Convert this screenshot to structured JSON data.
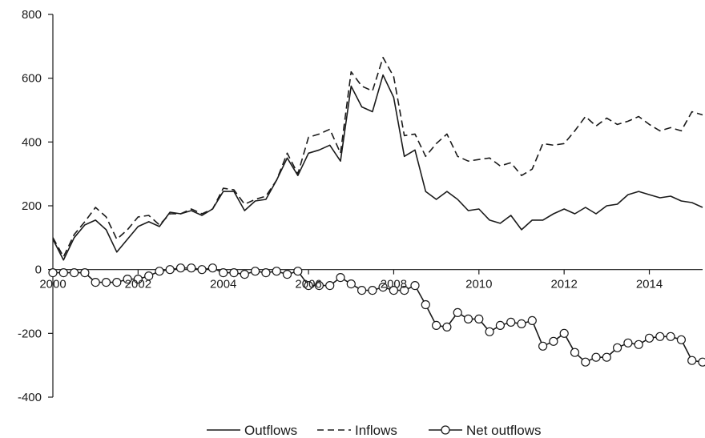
{
  "chart_data": {
    "type": "line",
    "title": "",
    "xlabel": "",
    "ylabel": "",
    "xlim": [
      2000,
      2015.25
    ],
    "ylim": [
      -400,
      800
    ],
    "x_ticks": [
      "2000",
      "2002",
      "2004",
      "2006",
      "2008",
      "2010",
      "2012",
      "2014"
    ],
    "y_ticks": [
      "800",
      "600",
      "400",
      "200",
      "0",
      "-200",
      "-400"
    ],
    "grid": false,
    "legend_position": "bottom",
    "x": [
      2000.0,
      2000.25,
      2000.5,
      2000.75,
      2001.0,
      2001.25,
      2001.5,
      2001.75,
      2002.0,
      2002.25,
      2002.5,
      2002.75,
      2003.0,
      2003.25,
      2003.5,
      2003.75,
      2004.0,
      2004.25,
      2004.5,
      2004.75,
      2005.0,
      2005.25,
      2005.5,
      2005.75,
      2006.0,
      2006.25,
      2006.5,
      2006.75,
      2007.0,
      2007.25,
      2007.5,
      2007.75,
      2008.0,
      2008.25,
      2008.5,
      2008.75,
      2009.0,
      2009.25,
      2009.5,
      2009.75,
      2010.0,
      2010.25,
      2010.5,
      2010.75,
      2011.0,
      2011.25,
      2011.5,
      2011.75,
      2012.0,
      2012.25,
      2012.5,
      2012.75,
      2013.0,
      2013.25,
      2013.5,
      2013.75,
      2014.0,
      2014.25,
      2014.5,
      2014.75,
      2015.0,
      2015.25
    ],
    "series": [
      {
        "name": "Outflows",
        "style": "solid",
        "color": "#1a1a1a",
        "values": [
          95,
          30,
          100,
          140,
          155,
          125,
          55,
          95,
          135,
          150,
          135,
          180,
          175,
          185,
          170,
          190,
          245,
          245,
          185,
          215,
          220,
          280,
          350,
          295,
          365,
          375,
          390,
          340,
          575,
          510,
          495,
          610,
          540,
          355,
          375,
          245,
          220,
          245,
          220,
          185,
          190,
          155,
          145,
          170,
          125,
          155,
          155,
          175,
          190,
          175,
          195,
          175,
          200,
          205,
          235,
          245,
          235,
          225,
          230,
          215,
          210,
          195
        ]
      },
      {
        "name": "Inflows",
        "style": "dashed",
        "color": "#1a1a1a",
        "values": [
          100,
          40,
          110,
          150,
          195,
          165,
          95,
          125,
          165,
          170,
          140,
          175,
          175,
          190,
          175,
          190,
          255,
          250,
          205,
          220,
          230,
          280,
          365,
          300,
          415,
          425,
          440,
          365,
          620,
          575,
          560,
          665,
          605,
          420,
          425,
          355,
          395,
          425,
          355,
          340,
          345,
          350,
          325,
          335,
          295,
          315,
          395,
          390,
          395,
          435,
          480,
          450,
          475,
          455,
          465,
          480,
          455,
          435,
          445,
          435,
          495,
          485
        ]
      },
      {
        "name": "Net outflows",
        "style": "circles",
        "color": "#1a1a1a",
        "values": [
          -10,
          -10,
          -10,
          -10,
          -40,
          -40,
          -40,
          -30,
          -30,
          -20,
          -5,
          0,
          5,
          5,
          0,
          5,
          -10,
          -10,
          -15,
          -5,
          -10,
          -5,
          -15,
          -5,
          -50,
          -50,
          -50,
          -25,
          -45,
          -65,
          -65,
          -55,
          -65,
          -65,
          -50,
          -110,
          -175,
          -180,
          -135,
          -155,
          -155,
          -195,
          -175,
          -165,
          -170,
          -160,
          -240,
          -225,
          -200,
          -260,
          -290,
          -275,
          -275,
          -245,
          -230,
          -235,
          -215,
          -210,
          -210,
          -220,
          -285,
          -290
        ]
      }
    ]
  }
}
